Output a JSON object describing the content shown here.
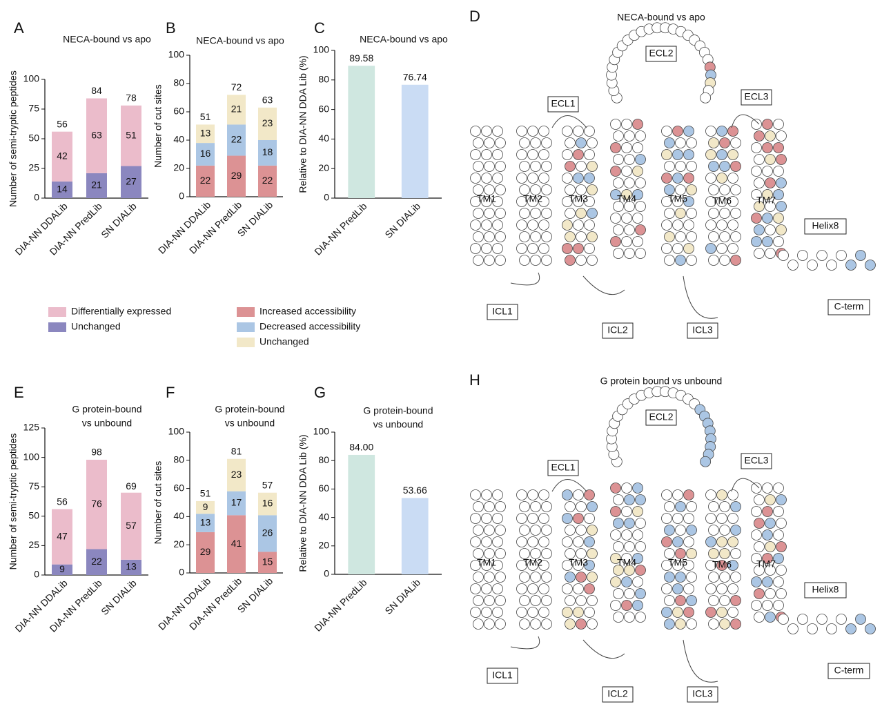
{
  "panel_labels": [
    "A",
    "B",
    "C",
    "D",
    "E",
    "F",
    "G",
    "H"
  ],
  "chart_data": [
    {
      "type": "stacked-bar",
      "title": "NECA-bound vs apo",
      "ylabel": "Number of semi-tryptic peptides",
      "categories": [
        "DIA-NN DDALib",
        "DIA-NN PredLib",
        "SN DIALib"
      ],
      "series": [
        {
          "name": "Unchanged",
          "color": "#8b87bf",
          "values": [
            14,
            21,
            27
          ]
        },
        {
          "name": "Differentially expressed",
          "color": "#ebbccb",
          "values": [
            42,
            63,
            51
          ]
        }
      ],
      "totals": [
        56,
        84,
        78
      ],
      "ylim": [
        0,
        100
      ],
      "yticks": [
        0,
        25,
        50,
        75,
        100
      ]
    },
    {
      "type": "stacked-bar",
      "title": "NECA-bound vs apo",
      "ylabel": "Number of cut sites",
      "categories": [
        "DIA-NN DDALib",
        "DIA-NN PredLib",
        "SN DIALib"
      ],
      "series": [
        {
          "name": "Increased accessibility",
          "color": "#dc9294",
          "values": [
            22,
            29,
            22
          ]
        },
        {
          "name": "Decreased accessibility",
          "color": "#abc6e4",
          "values": [
            16,
            22,
            18
          ]
        },
        {
          "name": "Unchanged",
          "color": "#f2e8c8",
          "values": [
            13,
            21,
            23
          ]
        }
      ],
      "totals": [
        51,
        72,
        63
      ],
      "ylim": [
        0,
        100
      ],
      "yticks": [
        0,
        20,
        40,
        60,
        80,
        100
      ]
    },
    {
      "type": "bar",
      "title": "NECA-bound vs apo",
      "ylabel": "Relative to DIA-NN DDA Lib (%)",
      "categories": [
        "DIA-NN PredLib",
        "SN DIALib"
      ],
      "values": [
        89.58,
        76.74
      ],
      "colors": [
        "#cfe7e0",
        "#cadcf4"
      ],
      "ylim": [
        0,
        100
      ],
      "yticks": [
        0,
        20,
        40,
        60,
        80,
        100
      ]
    },
    {
      "type": "stacked-bar",
      "title": [
        "G protein-bound",
        "vs unbound"
      ],
      "ylabel": "Number of semi-tryptic peptides",
      "categories": [
        "DIA-NN DDALib",
        "DIA-NN PredLib",
        "SN DIALib"
      ],
      "series": [
        {
          "name": "Unchanged",
          "color": "#8b87bf",
          "values": [
            9,
            22,
            13
          ]
        },
        {
          "name": "Differentially expressed",
          "color": "#ebbccb",
          "values": [
            47,
            76,
            57
          ]
        }
      ],
      "totals": [
        56,
        98,
        69
      ],
      "ylim": [
        0,
        125
      ],
      "yticks": [
        0,
        25,
        50,
        75,
        100,
        125
      ]
    },
    {
      "type": "stacked-bar",
      "title": [
        "G protein-bound",
        "vs unbound"
      ],
      "ylabel": "Number of cut sites",
      "categories": [
        "DIA-NN DDALib",
        "DIA-NN PredLib",
        "SN DIALib"
      ],
      "series": [
        {
          "name": "Increased accessibility",
          "color": "#dc9294",
          "values": [
            29,
            41,
            15
          ]
        },
        {
          "name": "Decreased accessibility",
          "color": "#abc6e4",
          "values": [
            13,
            17,
            26
          ]
        },
        {
          "name": "Unchanged",
          "color": "#f2e8c8",
          "values": [
            9,
            23,
            16
          ]
        }
      ],
      "totals": [
        51,
        81,
        57
      ],
      "ylim": [
        0,
        100
      ],
      "yticks": [
        0,
        20,
        40,
        60,
        80,
        100
      ]
    },
    {
      "type": "bar",
      "title": [
        "G protein-bound",
        "vs unbound"
      ],
      "ylabel": "Relative to DIA-NN DDA Lib (%)",
      "categories": [
        "DIA-NN PredLib",
        "SN DIALib"
      ],
      "values": [
        84.0,
        53.66
      ],
      "value_labels": [
        "84.00",
        "53.66"
      ],
      "colors": [
        "#cfe7e0",
        "#cadcf4"
      ],
      "ylim": [
        0,
        100
      ],
      "yticks": [
        0,
        20,
        40,
        60,
        80,
        100
      ]
    }
  ],
  "diagrams": [
    {
      "title": "NECA-bound vs apo",
      "labels": [
        "ECL1",
        "ECL2",
        "ECL3",
        "ICL1",
        "ICL2",
        "ICL3",
        "TM1",
        "TM2",
        "TM3",
        "TM4",
        "TM5",
        "TM6",
        "TM7",
        "Helix8",
        "C-term"
      ]
    },
    {
      "title": "G protein bound vs unbound",
      "labels": [
        "ECL1",
        "ECL2",
        "ECL3",
        "ICL1",
        "ICL2",
        "ICL3",
        "TM1",
        "TM2",
        "TM3",
        "TM4",
        "TM5",
        "TM6",
        "TM7",
        "Helix8",
        "C-term"
      ]
    }
  ]
}
